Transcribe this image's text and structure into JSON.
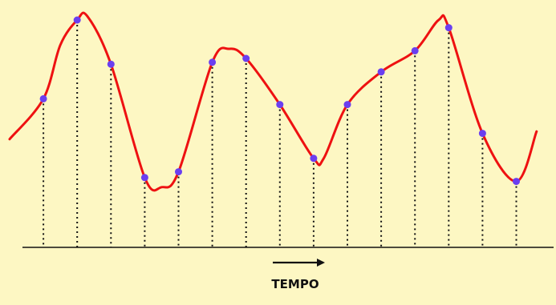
{
  "axis_label": "TEMPO",
  "colors": {
    "background": "#fdf7c3",
    "signal": "#ee1111",
    "sample_point": "#6a3ff0",
    "sample_line": "#111111",
    "axis": "#111111"
  },
  "chart_data": {
    "type": "line",
    "title": "",
    "xlabel": "TEMPO",
    "ylabel": "",
    "grid": false,
    "legend": "none",
    "samples": {
      "x": [
        1,
        2,
        3,
        4,
        5,
        6,
        7,
        8,
        9,
        10,
        11,
        12,
        13,
        14,
        15
      ],
      "y": [
        0.59,
        1.0,
        0.77,
        0.18,
        0.21,
        0.78,
        0.8,
        0.56,
        0.28,
        0.56,
        0.73,
        0.84,
        0.96,
        0.41,
        0.16
      ]
    },
    "curve": {
      "x": [
        0,
        1,
        1.5,
        2,
        2.3,
        3,
        4,
        4.5,
        5,
        6,
        6.5,
        7,
        8,
        9,
        9.3,
        10,
        11,
        12,
        12.7,
        13,
        14,
        15,
        15.6
      ],
      "y": [
        0.38,
        0.59,
        0.87,
        1.0,
        1.02,
        0.77,
        0.18,
        0.13,
        0.21,
        0.78,
        0.85,
        0.8,
        0.56,
        0.28,
        0.28,
        0.56,
        0.73,
        0.84,
        1.0,
        0.96,
        0.41,
        0.16,
        0.42
      ]
    }
  }
}
